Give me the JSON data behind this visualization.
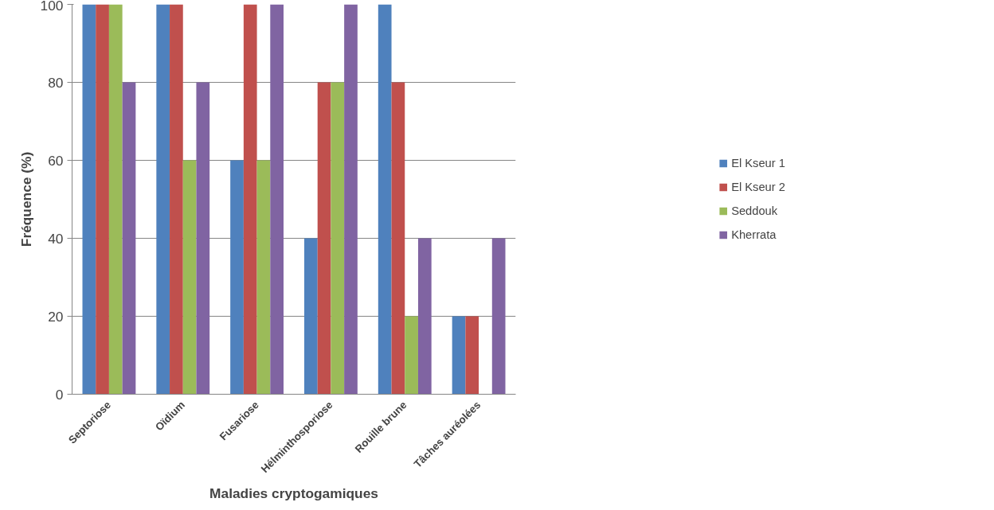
{
  "chart_data": {
    "type": "bar",
    "xlabel": "Maladies cryptogamiques",
    "ylabel": "Fréquence (%)",
    "categories": [
      "Septoriose",
      "Oïdium",
      "Fusariose",
      "Hélminthosporiose",
      "Rouille brune",
      "Tâches auréolées"
    ],
    "series": [
      {
        "name": "El Kseur 1",
        "color": "#4f81bd",
        "values": [
          100,
          100,
          60,
          40,
          100,
          20
        ]
      },
      {
        "name": "El Kseur 2",
        "color": "#c0504d",
        "values": [
          100,
          100,
          100,
          80,
          80,
          20
        ]
      },
      {
        "name": "Seddouk",
        "color": "#9bbb59",
        "values": [
          100,
          60,
          60,
          80,
          20,
          0
        ]
      },
      {
        "name": "Kherrata",
        "color": "#8064a2",
        "values": [
          80,
          80,
          100,
          100,
          40,
          40
        ]
      }
    ],
    "ylim": [
      0,
      100
    ],
    "yticks": [
      0,
      20,
      40,
      60,
      80,
      100
    ],
    "grid": "y",
    "legend": "right"
  }
}
